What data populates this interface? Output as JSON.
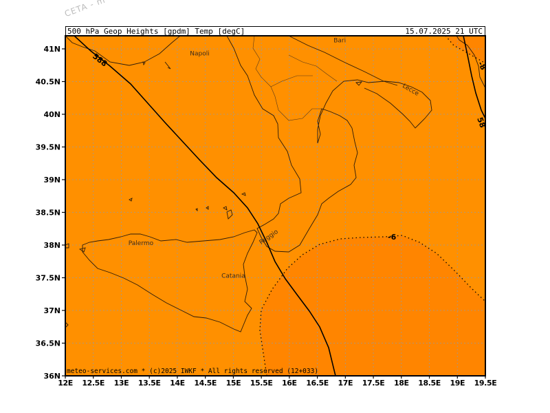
{
  "watermark": "CETA - m",
  "header": {
    "title": "500_hPa_Geop_Heights_[gpdm]_Temp_[degC]",
    "valid_time": "15.07.2025 21 UTC"
  },
  "map": {
    "lon_range": [
      12,
      19.5
    ],
    "lat_range": [
      36,
      41.2
    ],
    "lat_labels": [
      "41N",
      "40.5N",
      "40N",
      "39.5N",
      "39N",
      "38.5N",
      "38N",
      "37.5N",
      "37N",
      "36.5N",
      "36N"
    ],
    "lon_labels": [
      "12E",
      "12.5E",
      "13E",
      "13.5E",
      "14E",
      "14.5E",
      "15E",
      "15.5E",
      "16E",
      "16.5E",
      "17E",
      "17.5E",
      "18E",
      "18.5E",
      "19E",
      "19.5E"
    ],
    "grid": "dotted 0.5°",
    "fill_color": "#ff9000",
    "warm_area_color": "#ff8500",
    "cities": [
      {
        "name": "Napoli",
        "lon": 14.4,
        "lat": 40.9
      },
      {
        "name": "Bari",
        "lon": 16.9,
        "lat": 41.1
      },
      {
        "name": "Lecce",
        "lon": 18.15,
        "lat": 40.35
      },
      {
        "name": "Reggio",
        "lon": 15.65,
        "lat": 38.1
      },
      {
        "name": "Palermo",
        "lon": 13.35,
        "lat": 38.0
      },
      {
        "name": "Catania",
        "lon": 15.0,
        "lat": 37.5
      }
    ],
    "height_contours": [
      {
        "label": "588",
        "units": "gpdm"
      },
      {
        "label": "58",
        "units": "gpdm"
      }
    ],
    "temp_contours": [
      {
        "label": "-6",
        "units": "degC"
      },
      {
        "label": "-8",
        "units": "degC"
      }
    ]
  },
  "credit": "meteo-services.com * (c)2025 IWKF * All rights reserved (12+033)"
}
